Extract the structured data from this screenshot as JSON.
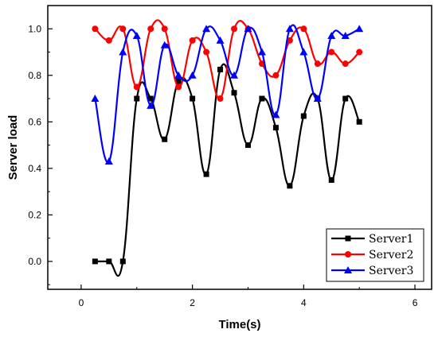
{
  "chart_data": {
    "type": "line",
    "title": "",
    "xlabel": "Time(s)",
    "ylabel": "Server load",
    "xlim": [
      -0.6,
      6.3
    ],
    "ylim": [
      -0.12,
      1.1
    ],
    "xticks": [
      0,
      2,
      4,
      6
    ],
    "yticks": [
      0.0,
      0.2,
      0.4,
      0.6,
      0.8,
      1.0
    ],
    "xtick_labels": [
      "0",
      "2",
      "4",
      "6"
    ],
    "ytick_labels": [
      "0.0",
      "0.2",
      "0.4",
      "0.6",
      "0.8",
      "1.0"
    ],
    "grid": false,
    "legend_position": "bottom-right",
    "x": [
      0.25,
      0.5,
      0.75,
      1.0,
      1.25,
      1.5,
      1.75,
      2.0,
      2.25,
      2.5,
      2.75,
      3.0,
      3.25,
      3.5,
      3.75,
      4.0,
      4.25,
      4.5,
      4.75,
      5.0
    ],
    "series": [
      {
        "name": "Server1",
        "color": "#000000",
        "marker": "square",
        "values": [
          0.0,
          0.0,
          0.0,
          0.7,
          0.7,
          0.525,
          0.775,
          0.7,
          0.375,
          0.825,
          0.725,
          0.5,
          0.7,
          0.575,
          0.325,
          0.625,
          0.7,
          0.35,
          0.7,
          0.6
        ]
      },
      {
        "name": "Server2",
        "color": "#ff0000",
        "marker": "circle",
        "values": [
          1.0,
          0.95,
          1.0,
          0.75,
          1.0,
          1.0,
          0.75,
          0.95,
          0.9,
          0.7,
          1.0,
          1.0,
          0.85,
          0.8,
          0.95,
          1.0,
          0.85,
          0.9,
          0.85,
          0.9
        ]
      },
      {
        "name": "Server3",
        "color": "#0000ff",
        "marker": "triangle",
        "values": [
          0.7,
          0.43,
          0.9,
          0.97,
          0.67,
          0.93,
          0.8,
          0.8,
          1.0,
          0.95,
          0.8,
          1.0,
          0.9,
          0.63,
          1.0,
          0.9,
          0.7,
          0.97,
          0.97,
          1.0
        ]
      }
    ]
  }
}
